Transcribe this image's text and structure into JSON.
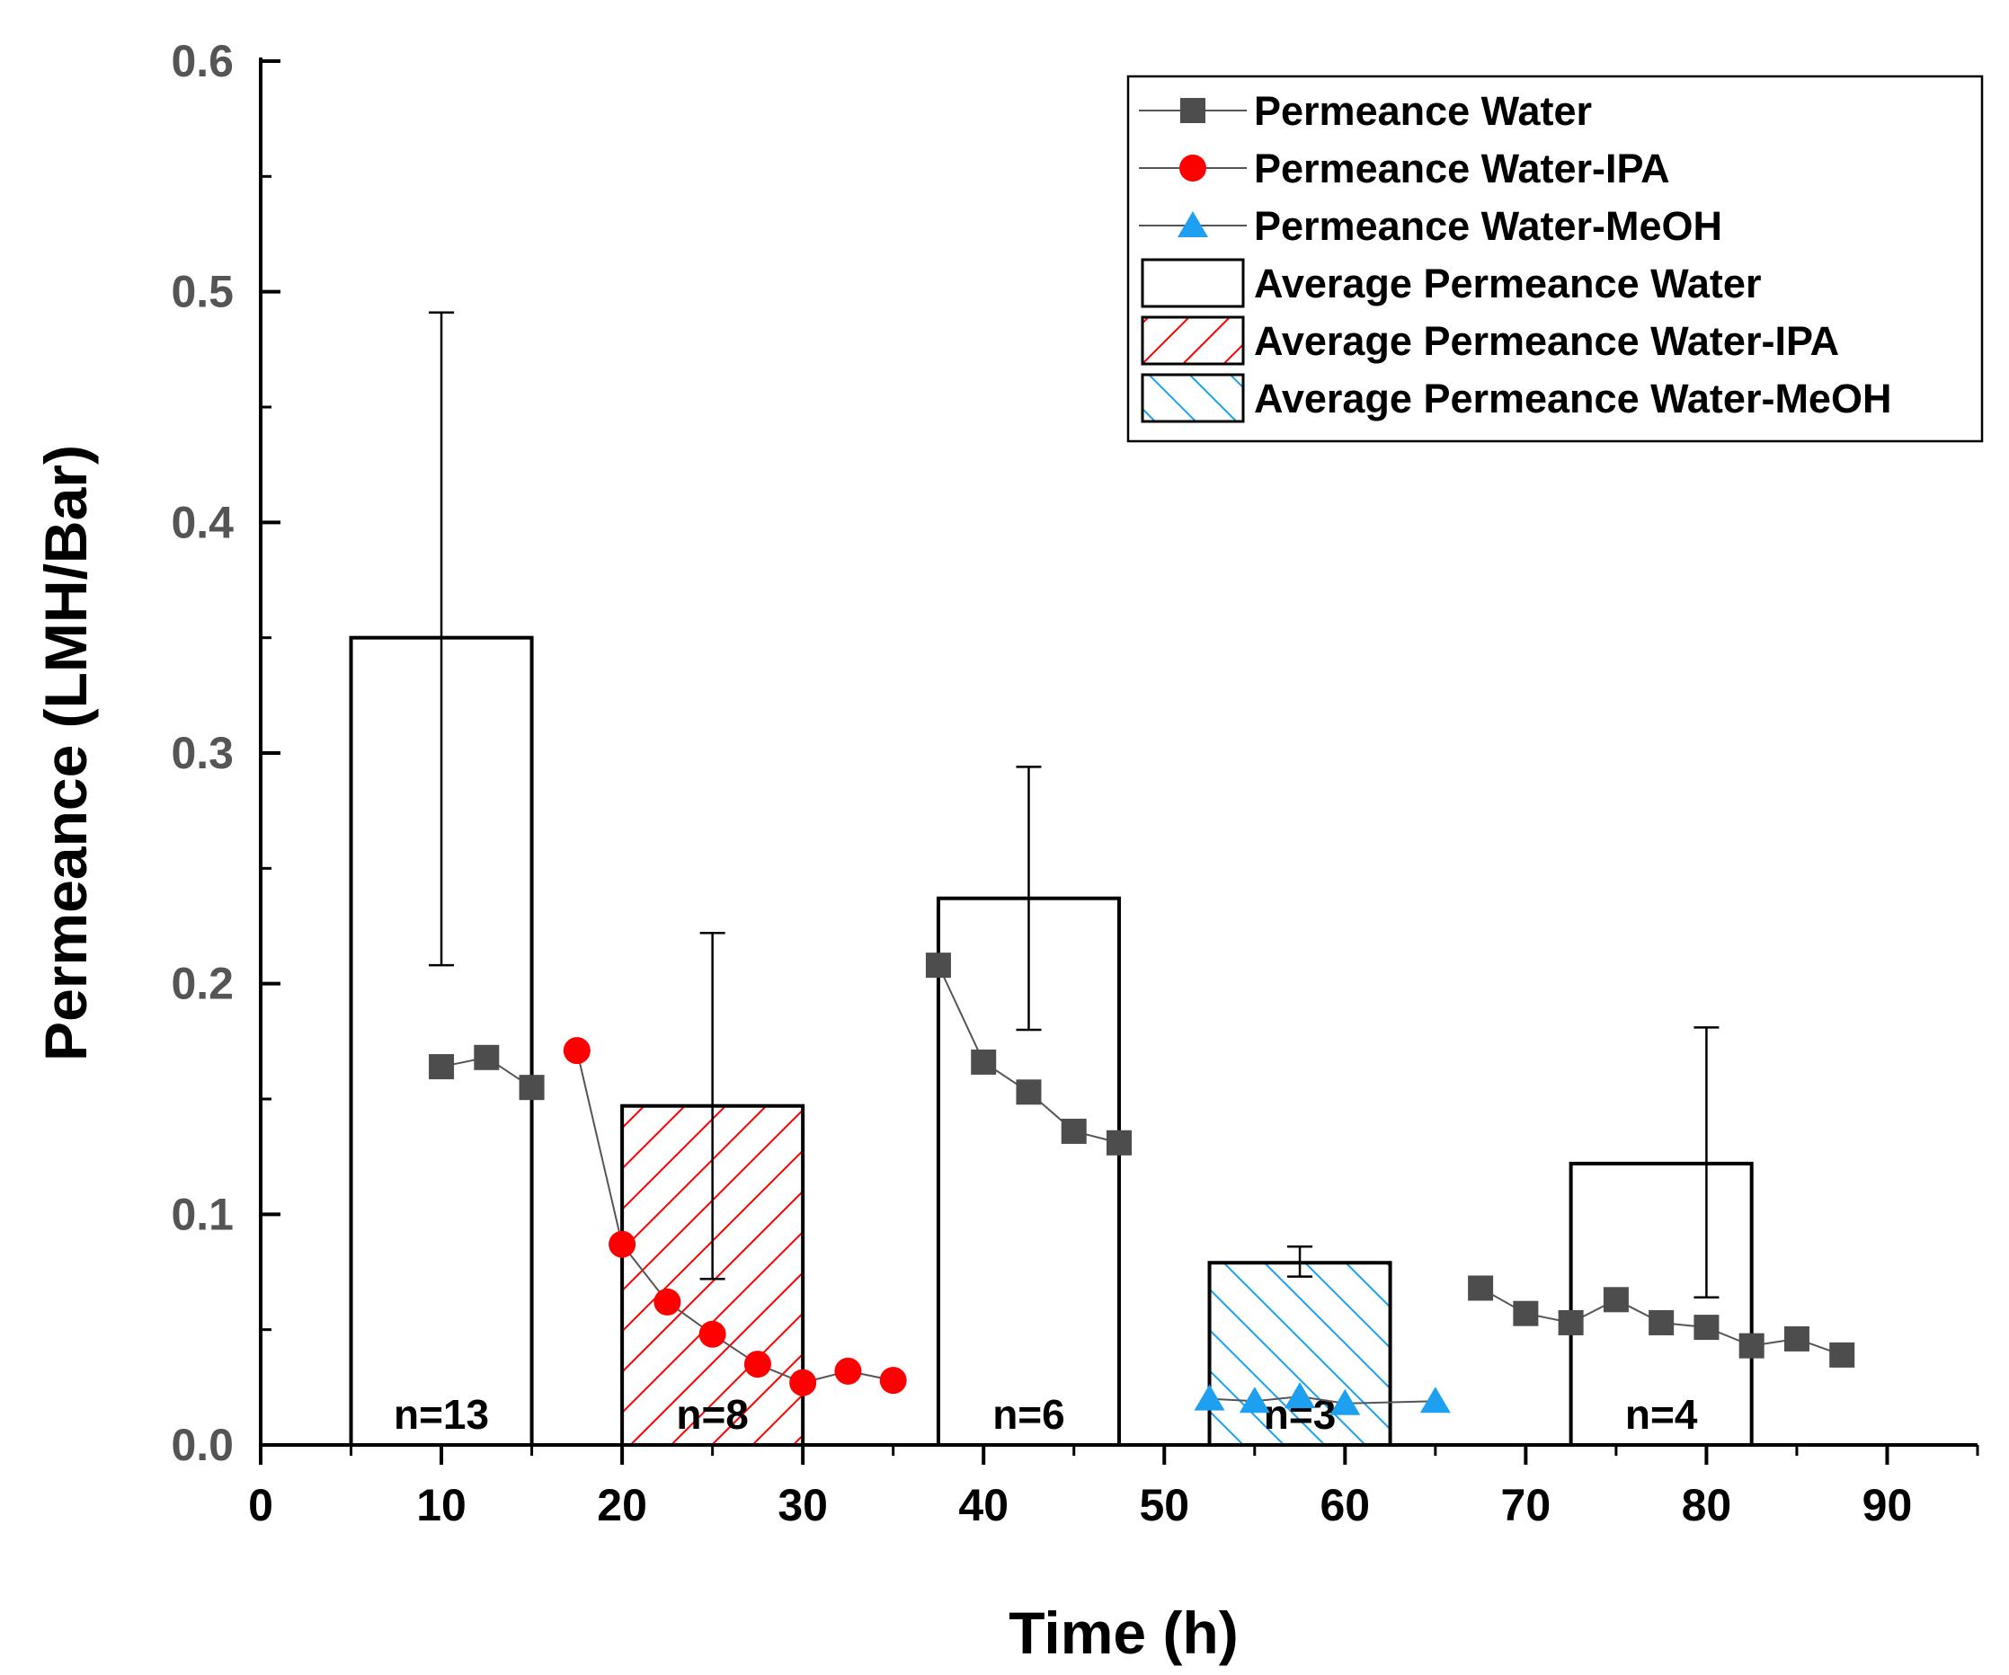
{
  "chart_data": {
    "type": "bar+line",
    "xlabel": "Time (h)",
    "ylabel": "Permeance (LMH/Bar)",
    "xlim": [
      0,
      95
    ],
    "ylim": [
      0,
      0.6
    ],
    "x_ticks": [
      "0",
      "10",
      "20",
      "30",
      "40",
      "50",
      "60",
      "70",
      "80",
      "90"
    ],
    "y_ticks": [
      "0.0",
      "0.1",
      "0.2",
      "0.3",
      "0.4",
      "0.5",
      "0.6"
    ],
    "bars": [
      {
        "series": "Average Permeance Water",
        "x_start": 5,
        "x_end": 15,
        "value": 0.35,
        "err_low": 0.208,
        "err_high": 0.491,
        "err_x": 10,
        "n_label": "n=13"
      },
      {
        "series": "Average Permeance Water-IPA",
        "x_start": 20,
        "x_end": 30,
        "value": 0.147,
        "err_low": 0.072,
        "err_high": 0.222,
        "err_x": 25,
        "n_label": "n=8"
      },
      {
        "series": "Average Permeance Water",
        "x_start": 37.5,
        "x_end": 47.5,
        "value": 0.237,
        "err_low": 0.18,
        "err_high": 0.294,
        "err_x": 42.5,
        "n_label": "n=6"
      },
      {
        "series": "Average Permeance Water-MeOH",
        "x_start": 52.5,
        "x_end": 62.5,
        "value": 0.079,
        "err_low": 0.073,
        "err_high": 0.086,
        "err_x": 57.5,
        "n_label": "n=3"
      },
      {
        "series": "Average Permeance Water",
        "x_start": 72.5,
        "x_end": 82.5,
        "value": 0.122,
        "err_low": 0.064,
        "err_high": 0.181,
        "err_x": 80,
        "n_label": "n=4"
      }
    ],
    "series": [
      {
        "name": "Permeance Water",
        "marker": "square",
        "color": "#4d4d4d",
        "segments": [
          [
            [
              10,
              0.164
            ],
            [
              12.5,
              0.168
            ],
            [
              15,
              0.155
            ]
          ],
          [
            [
              37.5,
              0.208
            ],
            [
              40,
              0.166
            ],
            [
              42.5,
              0.153
            ],
            [
              45,
              0.136
            ],
            [
              47.5,
              0.131
            ]
          ],
          [
            [
              67.5,
              0.068
            ],
            [
              70,
              0.057
            ],
            [
              72.5,
              0.053
            ],
            [
              75,
              0.063
            ],
            [
              77.5,
              0.053
            ],
            [
              80,
              0.051
            ],
            [
              82.5,
              0.043
            ],
            [
              85,
              0.046
            ],
            [
              87.5,
              0.039
            ]
          ]
        ]
      },
      {
        "name": "Permeance Water-IPA",
        "marker": "circle",
        "color": "#ff0000",
        "segments": [
          [
            [
              17.5,
              0.171
            ],
            [
              20,
              0.087
            ],
            [
              22.5,
              0.062
            ],
            [
              25,
              0.048
            ],
            [
              27.5,
              0.035
            ],
            [
              30,
              0.027
            ],
            [
              32.5,
              0.032
            ],
            [
              35,
              0.028
            ]
          ]
        ]
      },
      {
        "name": "Permeance Water-MeOH",
        "marker": "triangle",
        "color": "#1ea0f0",
        "segments": [
          [
            [
              52.5,
              0.02
            ],
            [
              55,
              0.019
            ],
            [
              57.5,
              0.021
            ],
            [
              60,
              0.018
            ],
            [
              65,
              0.019
            ]
          ]
        ]
      }
    ],
    "legend": {
      "position": "top-right",
      "entries": [
        {
          "label": "Permeance Water",
          "kind": "line-square",
          "color": "#4d4d4d"
        },
        {
          "label": "Permeance Water-IPA",
          "kind": "line-circle",
          "color": "#ff0000"
        },
        {
          "label": "Permeance Water-MeOH",
          "kind": "line-triangle",
          "color": "#1ea0f0"
        },
        {
          "label": "Average Permeance Water",
          "kind": "box-empty",
          "color": "#000000"
        },
        {
          "label": "Average Permeance Water-IPA",
          "kind": "box-hatch-fwd",
          "color": "#ff0000"
        },
        {
          "label": "Average Permeance Water-MeOH",
          "kind": "box-hatch-back",
          "color": "#1ea0f0"
        }
      ]
    }
  }
}
